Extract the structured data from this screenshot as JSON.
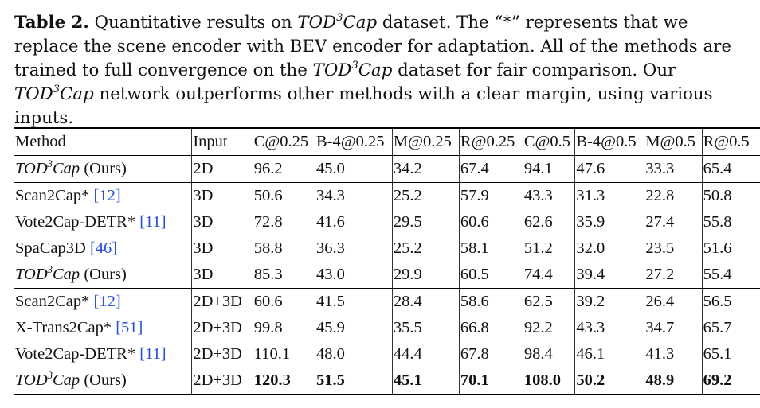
{
  "caption": {
    "label": "Table 2.",
    "t1": " Quantitative results on ",
    "model": "TOD",
    "sup": "3",
    "model2": "Cap",
    "t2": " dataset. The “*” represents that we replace the scene encoder with BEV encoder for adaptation. All of the methods are trained to full convergence on the ",
    "t3": " dataset for fair comparison. Our ",
    "t4": " network outperforms other methods with a clear margin, using various inputs."
  },
  "table": {
    "headers": [
      "Method",
      "Input",
      "C@0.25",
      "B-4@0.25",
      "M@0.25",
      "R@0.25",
      "C@0.5",
      "B-4@0.5",
      "M@0.5",
      "R@0.5"
    ],
    "rows": [
      {
        "method": "Ours",
        "cite": "",
        "input": "2D",
        "values": [
          "96.2",
          "45.0",
          "34.2",
          "67.4",
          "94.1",
          "47.6",
          "33.3",
          "65.4"
        ]
      },
      {
        "method": "Scan2Cap*",
        "cite": "[12]",
        "input": "3D",
        "values": [
          "50.6",
          "34.3",
          "25.2",
          "57.9",
          "43.3",
          "31.3",
          "22.8",
          "50.8"
        ]
      },
      {
        "method": "Vote2Cap-DETR*",
        "cite": "[11]",
        "input": "3D",
        "values": [
          "72.8",
          "41.6",
          "29.5",
          "60.6",
          "62.6",
          "35.9",
          "27.4",
          "55.8"
        ]
      },
      {
        "method": "SpaCap3D",
        "cite": "[46]",
        "input": "3D",
        "values": [
          "58.8",
          "36.3",
          "25.2",
          "58.1",
          "51.2",
          "32.0",
          "23.5",
          "51.6"
        ]
      },
      {
        "method": "Ours",
        "cite": "",
        "input": "3D",
        "values": [
          "85.3",
          "43.0",
          "29.9",
          "60.5",
          "74.4",
          "39.4",
          "27.2",
          "55.4"
        ]
      },
      {
        "method": "Scan2Cap*",
        "cite": "[12]",
        "input": "2D+3D",
        "values": [
          "60.6",
          "41.5",
          "28.4",
          "58.6",
          "62.5",
          "39.2",
          "26.4",
          "56.5"
        ]
      },
      {
        "method": "X-Trans2Cap*",
        "cite": "[51]",
        "input": "2D+3D",
        "values": [
          "99.8",
          "45.9",
          "35.5",
          "66.8",
          "92.2",
          "43.3",
          "34.7",
          "65.7"
        ]
      },
      {
        "method": "Vote2Cap-DETR*",
        "cite": "[11]",
        "input": "2D+3D",
        "values": [
          "110.1",
          "48.0",
          "44.4",
          "67.8",
          "98.4",
          "46.1",
          "41.3",
          "65.1"
        ]
      },
      {
        "method": "Ours",
        "cite": "",
        "input": "2D+3D",
        "values": [
          "120.3",
          "51.5",
          "45.1",
          "70.1",
          "108.0",
          "50.2",
          "48.9",
          "69.2"
        ]
      }
    ],
    "ours_label": "(Ours)"
  }
}
